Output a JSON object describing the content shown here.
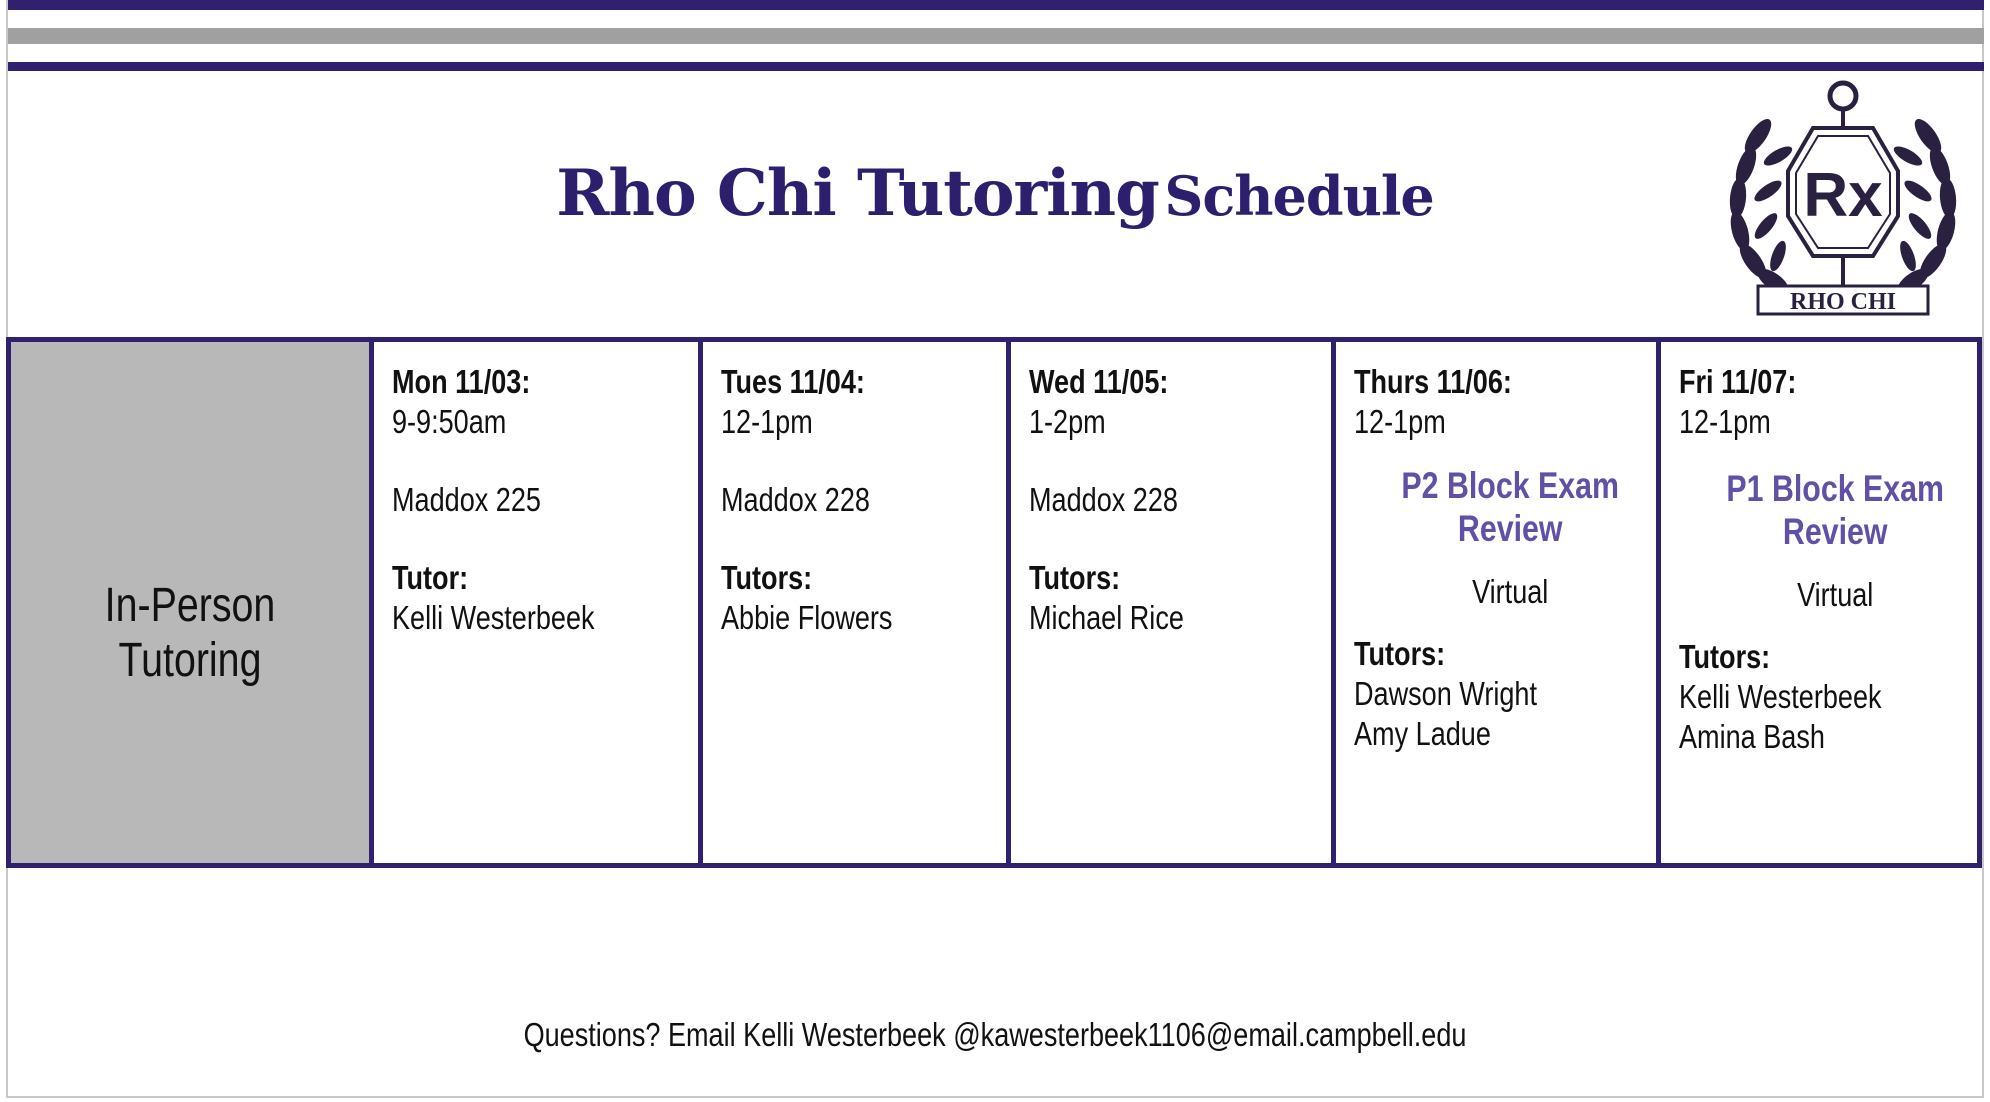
{
  "title": {
    "main": "Rho Chi Tutoring",
    "suffix": "Schedule"
  },
  "logo": {
    "text": "RHO CHI",
    "monogram": "Rx"
  },
  "row_label": "In-Person Tutoring",
  "days": [
    {
      "date": "Mon 11/03:",
      "time": "9-9:50am",
      "location": "Maddox 225",
      "tutor_label": "Tutor:",
      "tutors": [
        "Kelli Westerbeek"
      ]
    },
    {
      "date": "Tues 11/04:",
      "time": "12-1pm",
      "location": "Maddox 228",
      "tutor_label": "Tutors:",
      "tutors": [
        "Abbie Flowers"
      ]
    },
    {
      "date": "Wed 11/05:",
      "time": "1-2pm",
      "location": "Maddox 228",
      "tutor_label": "Tutors:",
      "tutors": [
        "Michael Rice"
      ]
    },
    {
      "date": "Thurs 11/06:",
      "time": "12-1pm",
      "event": [
        "P2 Block Exam",
        "Review"
      ],
      "location": "Virtual",
      "tutor_label": "Tutors:",
      "tutors": [
        "Dawson Wright",
        "Amy Ladue"
      ]
    },
    {
      "date": "Fri 11/07:",
      "time": "12-1pm",
      "event": [
        "P1 Block Exam",
        "Review"
      ],
      "location": "Virtual",
      "tutor_label": "Tutors:",
      "tutors": [
        "Kelli Westerbeek",
        "Amina Bash"
      ]
    }
  ],
  "footer": "Questions? Email Kelli Westerbeek @kawesterbeek1106@email.campbell.edu",
  "colors": {
    "primary": "#30206e",
    "accent": "#6150a6",
    "gray_bar": "#a0a0a0",
    "label_cell": "#b8b8b8"
  }
}
